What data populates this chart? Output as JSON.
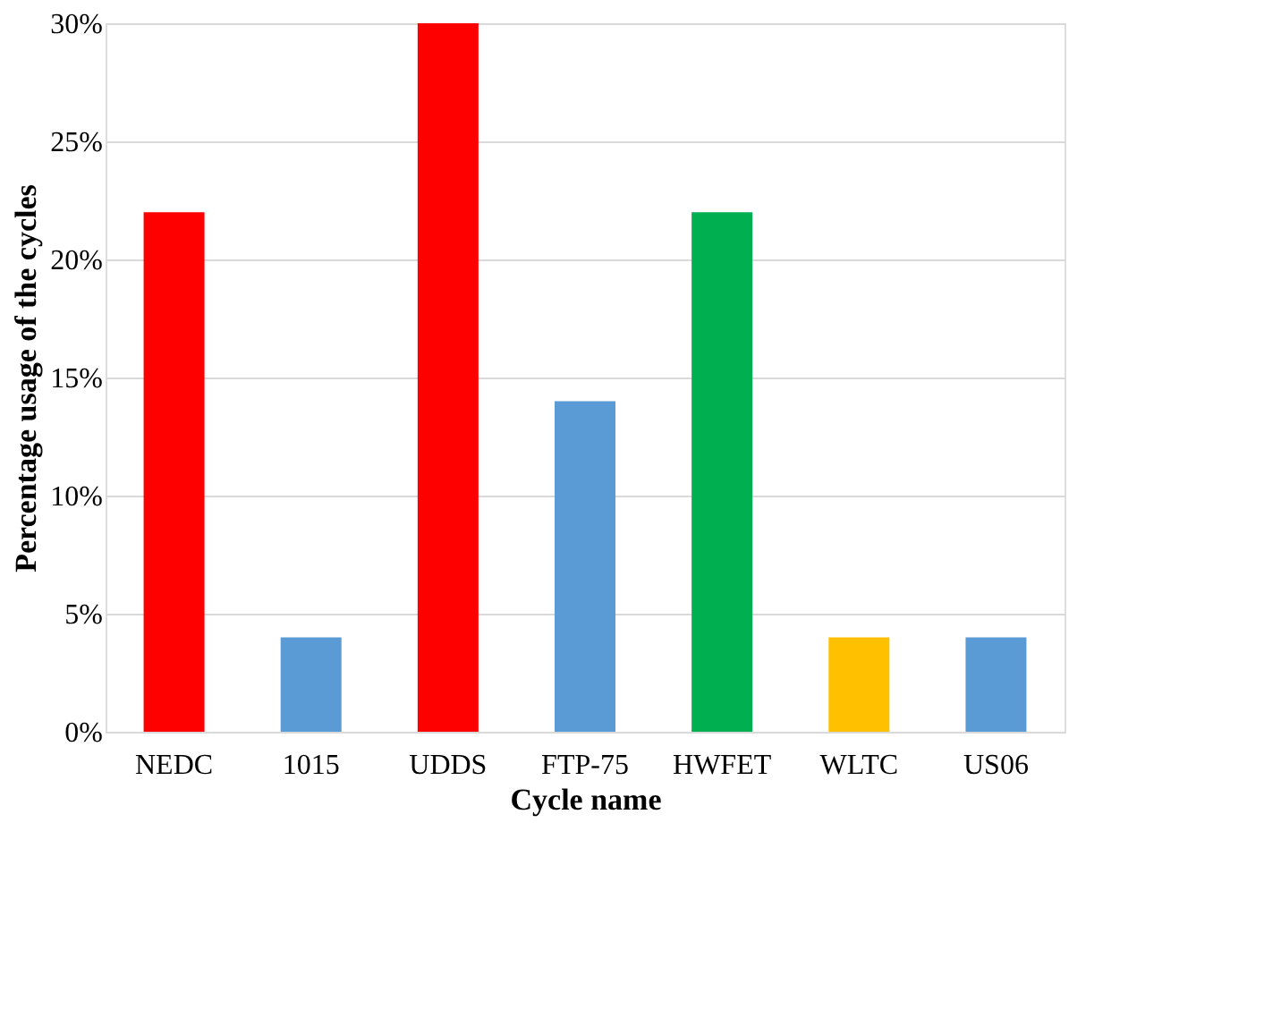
{
  "chart_data": {
    "type": "bar",
    "xlabel": "Cycle name",
    "ylabel": "Percentage usage of the cycles",
    "categories": [
      "NEDC",
      "1015",
      "UDDS",
      "FTP-75",
      "HWFET",
      "WLTC",
      "US06"
    ],
    "values": [
      22,
      4,
      30,
      14,
      22,
      4,
      4
    ],
    "colors": [
      "#ff0000",
      "#5b9bd5",
      "#ff0000",
      "#5b9bd5",
      "#00b050",
      "#ffc000",
      "#5b9bd5"
    ],
    "ylim": [
      0,
      30
    ],
    "yticks": [
      {
        "value": 0,
        "label": "0%"
      },
      {
        "value": 5,
        "label": "5%"
      },
      {
        "value": 10,
        "label": "10%"
      },
      {
        "value": 15,
        "label": "15%"
      },
      {
        "value": 20,
        "label": "20%"
      },
      {
        "value": 25,
        "label": "25%"
      },
      {
        "value": 30,
        "label": "30%"
      }
    ],
    "grid": "y",
    "legend": false
  }
}
